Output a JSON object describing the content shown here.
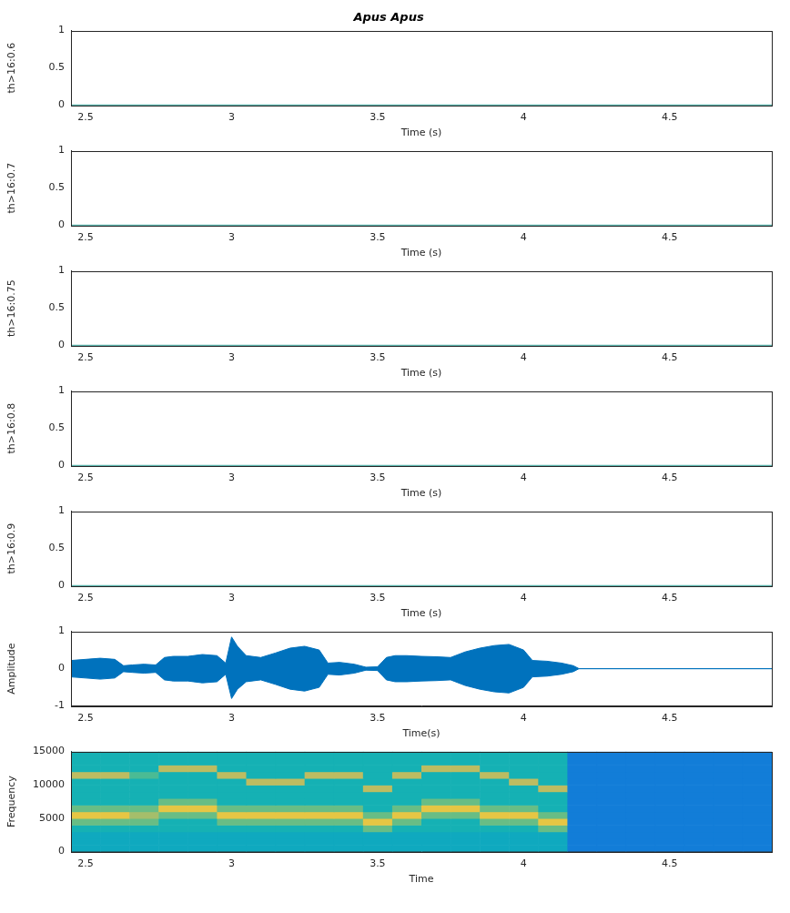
{
  "chart_data": [
    {
      "type": "line",
      "title": "Apus Apus",
      "ylabel": "th>16:0.6",
      "xlabel": "Time (s)",
      "x": [
        2.45,
        4.85
      ],
      "values": [
        0,
        0
      ],
      "color": "#5ab4ac",
      "xlim": [
        2.45,
        4.85
      ],
      "xticks": [
        2.5,
        3,
        3.5,
        4,
        4.5
      ],
      "ylim": [
        0,
        1
      ],
      "yticks": [
        0,
        0.5,
        1
      ]
    },
    {
      "type": "line",
      "ylabel": "th>16:0.7",
      "xlabel": "Time (s)",
      "x": [
        2.45,
        4.85
      ],
      "values": [
        0,
        0
      ],
      "color": "#5ab4ac",
      "xlim": [
        2.45,
        4.85
      ],
      "xticks": [
        2.5,
        3,
        3.5,
        4,
        4.5
      ],
      "ylim": [
        0,
        1
      ],
      "yticks": [
        0,
        0.5,
        1
      ]
    },
    {
      "type": "line",
      "ylabel": "th>16:0.75",
      "xlabel": "Time (s)",
      "x": [
        2.45,
        4.85
      ],
      "values": [
        0,
        0
      ],
      "color": "#5ab4ac",
      "xlim": [
        2.45,
        4.85
      ],
      "xticks": [
        2.5,
        3,
        3.5,
        4,
        4.5
      ],
      "ylim": [
        0,
        1
      ],
      "yticks": [
        0,
        0.5,
        1
      ]
    },
    {
      "type": "line",
      "ylabel": "th>16:0.8",
      "xlabel": "Time (s)",
      "x": [
        2.45,
        4.85
      ],
      "values": [
        0,
        0
      ],
      "color": "#5ab4ac",
      "xlim": [
        2.45,
        4.85
      ],
      "xticks": [
        2.5,
        3,
        3.5,
        4,
        4.5
      ],
      "ylim": [
        0,
        1
      ],
      "yticks": [
        0,
        0.5,
        1
      ]
    },
    {
      "type": "line",
      "ylabel": "th>16:0.9",
      "xlabel": "Time (s)",
      "x": [
        2.45,
        4.85
      ],
      "values": [
        0,
        0
      ],
      "color": "#5ab4ac",
      "xlim": [
        2.45,
        4.85
      ],
      "xticks": [
        2.5,
        3,
        3.5,
        4,
        4.5
      ],
      "ylim": [
        0,
        1
      ],
      "yticks": [
        0,
        0.5,
        1
      ]
    },
    {
      "type": "area",
      "ylabel": "Amplitude",
      "xlabel": "Time(s)",
      "x": [
        2.45,
        2.5,
        2.55,
        2.6,
        2.63,
        2.66,
        2.7,
        2.74,
        2.77,
        2.8,
        2.85,
        2.9,
        2.95,
        2.98,
        3.0,
        3.02,
        3.05,
        3.1,
        3.15,
        3.2,
        3.25,
        3.3,
        3.33,
        3.37,
        3.42,
        3.46,
        3.5,
        3.53,
        3.56,
        3.6,
        3.65,
        3.7,
        3.75,
        3.8,
        3.85,
        3.9,
        3.95,
        4.0,
        4.03,
        4.08,
        4.13,
        4.17,
        4.19,
        4.85
      ],
      "series": [
        {
          "color": "#0072bd",
          "values": [
            0.22,
            0.25,
            0.28,
            0.25,
            0.08,
            0.1,
            0.12,
            0.1,
            0.3,
            0.33,
            0.33,
            0.38,
            0.35,
            0.15,
            0.85,
            0.6,
            0.35,
            0.3,
            0.42,
            0.55,
            0.6,
            0.5,
            0.15,
            0.17,
            0.12,
            0.04,
            0.05,
            0.3,
            0.35,
            0.35,
            0.33,
            0.32,
            0.3,
            0.45,
            0.55,
            0.62,
            0.65,
            0.5,
            0.22,
            0.2,
            0.15,
            0.08,
            0,
            0
          ]
        },
        {
          "color": "#0072bd",
          "values": [
            -0.22,
            -0.25,
            -0.28,
            -0.25,
            -0.08,
            -0.1,
            -0.12,
            -0.1,
            -0.3,
            -0.33,
            -0.33,
            -0.38,
            -0.35,
            -0.15,
            -0.8,
            -0.55,
            -0.35,
            -0.3,
            -0.42,
            -0.55,
            -0.6,
            -0.5,
            -0.15,
            -0.17,
            -0.12,
            -0.04,
            -0.05,
            -0.3,
            -0.35,
            -0.35,
            -0.33,
            -0.32,
            -0.3,
            -0.45,
            -0.55,
            -0.62,
            -0.65,
            -0.5,
            -0.22,
            -0.2,
            -0.15,
            -0.08,
            0,
            0
          ]
        }
      ],
      "xlim": [
        2.45,
        4.85
      ],
      "xticks": [
        2.5,
        3,
        3.5,
        4,
        4.5
      ],
      "ylim": [
        -1,
        1
      ],
      "yticks": [
        -1,
        0,
        1
      ]
    },
    {
      "type": "heatmap",
      "ylabel": "Frequency",
      "xlabel": "Time",
      "x_bins": [
        2.45,
        2.55,
        2.65,
        2.75,
        2.85,
        2.95,
        3.05,
        3.15,
        3.25,
        3.35,
        3.45,
        3.55,
        3.65,
        3.75,
        3.85,
        3.95,
        4.05,
        4.15,
        4.25,
        4.35,
        4.45,
        4.55,
        4.65,
        4.75,
        4.85
      ],
      "y_bins": [
        0,
        1000,
        2000,
        3000,
        4000,
        5000,
        6000,
        7000,
        8000,
        9000,
        10000,
        11000,
        12000,
        13000,
        14000,
        15000
      ],
      "cells": [
        [
          0.45,
          0.45,
          0.45,
          0.45,
          0.45,
          0.45,
          0.45,
          0.45,
          0.45,
          0.45,
          0.45,
          0.45,
          0.45,
          0.45,
          0.45,
          0.45,
          0.45,
          0.25,
          0.25,
          0.25,
          0.25,
          0.25,
          0.25,
          0.25
        ],
        [
          0.45,
          0.45,
          0.45,
          0.45,
          0.45,
          0.45,
          0.45,
          0.45,
          0.45,
          0.45,
          0.45,
          0.45,
          0.45,
          0.45,
          0.45,
          0.45,
          0.45,
          0.25,
          0.25,
          0.25,
          0.25,
          0.25,
          0.25,
          0.25
        ],
        [
          0.45,
          0.45,
          0.45,
          0.45,
          0.45,
          0.45,
          0.45,
          0.45,
          0.45,
          0.45,
          0.45,
          0.45,
          0.45,
          0.45,
          0.45,
          0.45,
          0.45,
          0.25,
          0.25,
          0.25,
          0.25,
          0.25,
          0.25,
          0.25
        ],
        [
          0.5,
          0.5,
          0.5,
          0.5,
          0.5,
          0.5,
          0.5,
          0.5,
          0.5,
          0.5,
          0.65,
          0.5,
          0.5,
          0.5,
          0.5,
          0.5,
          0.65,
          0.25,
          0.25,
          0.25,
          0.25,
          0.25,
          0.25,
          0.25
        ],
        [
          0.65,
          0.65,
          0.65,
          0.5,
          0.5,
          0.65,
          0.65,
          0.65,
          0.65,
          0.65,
          0.9,
          0.65,
          0.5,
          0.5,
          0.65,
          0.65,
          0.9,
          0.25,
          0.25,
          0.25,
          0.25,
          0.25,
          0.25,
          0.25
        ],
        [
          0.9,
          0.9,
          0.75,
          0.65,
          0.65,
          0.9,
          0.9,
          0.9,
          0.9,
          0.9,
          0.65,
          0.9,
          0.65,
          0.65,
          0.9,
          0.9,
          0.65,
          0.25,
          0.25,
          0.25,
          0.25,
          0.25,
          0.25,
          0.25
        ],
        [
          0.65,
          0.65,
          0.65,
          0.9,
          0.9,
          0.65,
          0.65,
          0.65,
          0.65,
          0.65,
          0.5,
          0.65,
          0.9,
          0.9,
          0.65,
          0.65,
          0.5,
          0.25,
          0.25,
          0.25,
          0.25,
          0.25,
          0.25,
          0.25
        ],
        [
          0.5,
          0.5,
          0.5,
          0.65,
          0.65,
          0.5,
          0.5,
          0.5,
          0.5,
          0.5,
          0.5,
          0.5,
          0.65,
          0.65,
          0.5,
          0.5,
          0.5,
          0.25,
          0.25,
          0.25,
          0.25,
          0.25,
          0.25,
          0.25
        ],
        [
          0.5,
          0.5,
          0.5,
          0.5,
          0.5,
          0.5,
          0.5,
          0.5,
          0.5,
          0.5,
          0.5,
          0.5,
          0.5,
          0.5,
          0.5,
          0.5,
          0.5,
          0.25,
          0.25,
          0.25,
          0.25,
          0.25,
          0.25,
          0.25
        ],
        [
          0.5,
          0.5,
          0.5,
          0.5,
          0.5,
          0.5,
          0.5,
          0.5,
          0.5,
          0.5,
          0.8,
          0.5,
          0.5,
          0.5,
          0.5,
          0.5,
          0.8,
          0.25,
          0.25,
          0.25,
          0.25,
          0.25,
          0.25,
          0.25
        ],
        [
          0.5,
          0.5,
          0.5,
          0.5,
          0.5,
          0.5,
          0.8,
          0.8,
          0.5,
          0.5,
          0.5,
          0.5,
          0.5,
          0.5,
          0.5,
          0.8,
          0.5,
          0.25,
          0.25,
          0.25,
          0.25,
          0.25,
          0.25,
          0.25
        ],
        [
          0.8,
          0.8,
          0.6,
          0.5,
          0.5,
          0.8,
          0.5,
          0.5,
          0.8,
          0.8,
          0.5,
          0.8,
          0.5,
          0.5,
          0.8,
          0.5,
          0.5,
          0.25,
          0.25,
          0.25,
          0.25,
          0.25,
          0.25,
          0.25
        ],
        [
          0.5,
          0.5,
          0.5,
          0.8,
          0.8,
          0.5,
          0.5,
          0.5,
          0.5,
          0.5,
          0.5,
          0.5,
          0.8,
          0.8,
          0.5,
          0.5,
          0.5,
          0.25,
          0.25,
          0.25,
          0.25,
          0.25,
          0.25,
          0.25
        ],
        [
          0.5,
          0.5,
          0.5,
          0.5,
          0.5,
          0.5,
          0.5,
          0.5,
          0.5,
          0.5,
          0.5,
          0.5,
          0.5,
          0.5,
          0.5,
          0.5,
          0.5,
          0.25,
          0.25,
          0.25,
          0.25,
          0.25,
          0.25,
          0.25
        ],
        [
          0.5,
          0.5,
          0.5,
          0.5,
          0.5,
          0.5,
          0.5,
          0.5,
          0.5,
          0.5,
          0.5,
          0.5,
          0.5,
          0.5,
          0.5,
          0.5,
          0.5,
          0.25,
          0.25,
          0.25,
          0.25,
          0.25,
          0.25,
          0.25
        ]
      ],
      "clim": [
        0,
        1
      ],
      "xlim": [
        2.45,
        4.85
      ],
      "xticks": [
        2.5,
        3,
        3.5,
        4,
        4.5
      ],
      "ylim": [
        0,
        15000
      ],
      "yticks": [
        0,
        5000,
        10000,
        15000
      ]
    }
  ]
}
